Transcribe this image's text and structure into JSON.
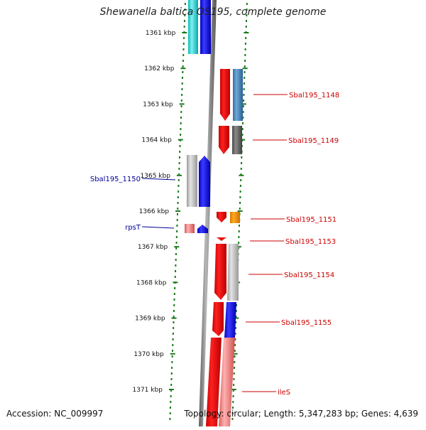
{
  "title": "Shewanella baltica OS195, complete genome",
  "accession": "Accession: NC_009997",
  "summary": "Topology: circular; Length: 5,347,283 bp; Genes: 4,639",
  "colors": {
    "ruler": "#1a7a1a",
    "dna": "#888888",
    "label_plus": "#cc0000",
    "label_minus": "#000099"
  },
  "ruler_ticks": [
    "1361 kbp",
    "1362 kbp",
    "1363 kbp",
    "1364 kbp",
    "1365 kbp",
    "1366 kbp",
    "1367 kbp",
    "1368 kbp",
    "1369 kbp",
    "1370 kbp",
    "1371 kbp"
  ],
  "gene_labels": [
    {
      "name": "Sbal195_1148",
      "side": "right"
    },
    {
      "name": "Sbal195_1149",
      "side": "right"
    },
    {
      "name": "Sbal195_1150",
      "side": "left"
    },
    {
      "name": "Sbal195_1151",
      "side": "right"
    },
    {
      "name": "rpsT",
      "side": "left"
    },
    {
      "name": "Sbal195_1153",
      "side": "right"
    },
    {
      "name": "Sbal195_1154",
      "side": "right"
    },
    {
      "name": "Sbal195_1155",
      "side": "right"
    },
    {
      "name": "ileS",
      "side": "right"
    }
  ]
}
